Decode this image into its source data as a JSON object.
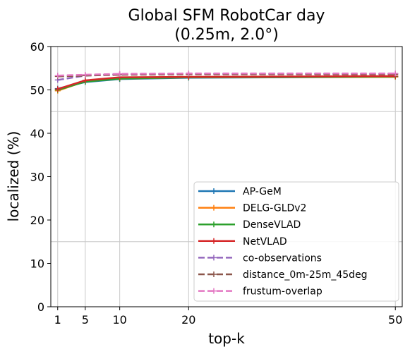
{
  "chart_data": {
    "type": "line",
    "title_lines": [
      "Global SFM RobotCar day",
      "(0.25m, 2.0°)"
    ],
    "xlabel": "top-k",
    "ylabel": "localized (%)",
    "x": [
      1,
      5,
      10,
      20,
      50
    ],
    "xticks": [
      "1",
      "5",
      "10",
      "20",
      "50"
    ],
    "yticks": [
      "0",
      "10",
      "20",
      "30",
      "40",
      "50",
      "60"
    ],
    "xlim": [
      0,
      51
    ],
    "ylim": [
      0,
      60
    ],
    "grid": "vertical at x ticks; horizontal at 15, 45 (light gray)",
    "hgrid_values": [
      15,
      45
    ],
    "legend_position": "lower-right",
    "series": [
      {
        "name": "AP-GeM",
        "color": "#1f77b4",
        "dashed": false,
        "values": [
          50.3,
          51.8,
          52.5,
          52.8,
          53.0
        ]
      },
      {
        "name": "DELG-GLDv2",
        "color": "#ff7f0e",
        "dashed": false,
        "values": [
          49.8,
          52.0,
          52.6,
          52.9,
          53.0
        ]
      },
      {
        "name": "DenseVLAD",
        "color": "#2ca02c",
        "dashed": false,
        "values": [
          50.0,
          51.9,
          52.6,
          52.9,
          53.1
        ]
      },
      {
        "name": "NetVLAD",
        "color": "#d62728",
        "dashed": false,
        "values": [
          50.2,
          52.2,
          52.9,
          53.0,
          53.2
        ]
      },
      {
        "name": "co-observations",
        "color": "#9467bd",
        "dashed": true,
        "values": [
          52.3,
          53.3,
          53.6,
          53.7,
          53.7
        ]
      },
      {
        "name": "distance_0m-25m_45deg",
        "color": "#8c564b",
        "dashed": true,
        "values": [
          53.1,
          53.3,
          53.5,
          53.6,
          53.6
        ]
      },
      {
        "name": "frustum-overlap",
        "color": "#e377c2",
        "dashed": true,
        "values": [
          53.3,
          53.5,
          53.7,
          53.8,
          53.8
        ]
      }
    ]
  }
}
